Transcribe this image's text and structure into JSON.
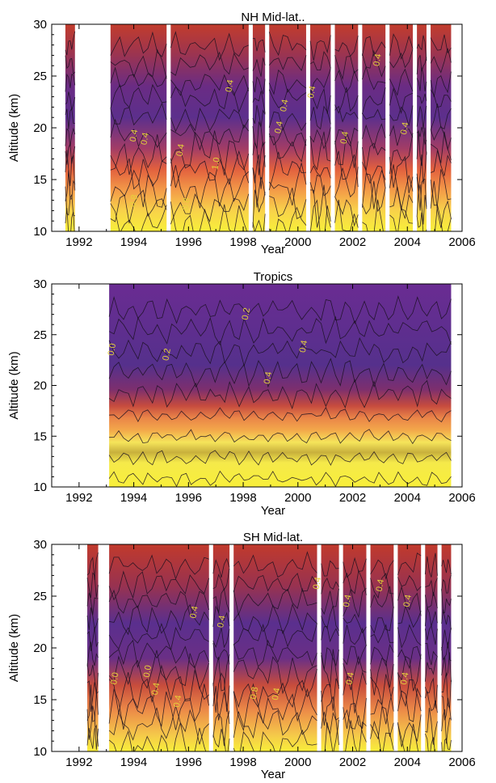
{
  "chart_data": [
    {
      "type": "heatmap",
      "title": "NH Mid-lat..",
      "xlabel": "Year",
      "ylabel": "Altitude (km)",
      "xlim": [
        1991,
        2006
      ],
      "ylim": [
        10,
        30
      ],
      "x_ticks": [
        "1992",
        "1994",
        "1996",
        "1998",
        "2000",
        "2002",
        "2004",
        "2006"
      ],
      "y_ticks": [
        "10",
        "15",
        "20",
        "25",
        "30"
      ],
      "data_spans": [
        [
          1991.5,
          1991.85
        ],
        [
          1993.15,
          1995.2
        ],
        [
          1995.35,
          1998.2
        ],
        [
          1998.35,
          1998.8
        ],
        [
          1998.95,
          2000.3
        ],
        [
          2000.45,
          2001.2
        ],
        [
          2001.35,
          2002.2
        ],
        [
          2002.35,
          2003.2
        ],
        [
          2003.35,
          2004.2
        ],
        [
          2004.35,
          2004.7
        ],
        [
          2004.85,
          2005.6
        ]
      ],
      "contour_labels": [
        {
          "text": "0.4",
          "x": 1994.1,
          "y": 19.2
        },
        {
          "text": "0.4",
          "x": 1994.5,
          "y": 18.9
        },
        {
          "text": "0.4",
          "x": 1995.8,
          "y": 17.8
        },
        {
          "text": "0.8",
          "x": 1994.1,
          "y": 12.9
        },
        {
          "text": "0.8",
          "x": 1996.0,
          "y": 12.6
        },
        {
          "text": "1.0",
          "x": 1997.1,
          "y": 16.5
        },
        {
          "text": "0.4",
          "x": 1997.6,
          "y": 24.0
        },
        {
          "text": "0.4",
          "x": 1999.4,
          "y": 20.0
        },
        {
          "text": "0.4",
          "x": 1999.6,
          "y": 22.1
        },
        {
          "text": "0.4",
          "x": 2000.6,
          "y": 23.4
        },
        {
          "text": "0.4",
          "x": 2001.8,
          "y": 19.0
        },
        {
          "text": "0.4",
          "x": 2003.0,
          "y": 26.5
        },
        {
          "text": "0.4",
          "x": 2004.0,
          "y": 19.9
        }
      ]
    },
    {
      "type": "heatmap",
      "title": "Tropics",
      "xlabel": "Year",
      "ylabel": "Altitude (km)",
      "xlim": [
        1991,
        2006
      ],
      "ylim": [
        10,
        30
      ],
      "x_ticks": [
        "1992",
        "1994",
        "1996",
        "1998",
        "2000",
        "2002",
        "2004",
        "2006"
      ],
      "y_ticks": [
        "10",
        "15",
        "20",
        "25",
        "30"
      ],
      "data_spans": [
        [
          1993.1,
          2005.6
        ]
      ],
      "contour_labels": [
        {
          "text": "0.0",
          "x": 1993.3,
          "y": 23.5
        },
        {
          "text": "0.2",
          "x": 1995.3,
          "y": 23.0
        },
        {
          "text": "0.2",
          "x": 1998.2,
          "y": 27.0
        },
        {
          "text": "0.4",
          "x": 2000.3,
          "y": 23.8
        },
        {
          "text": "0.4",
          "x": 1999.0,
          "y": 20.7
        }
      ]
    },
    {
      "type": "heatmap",
      "title": "SH Mid-lat.",
      "xlabel": "Year",
      "ylabel": "Altitude (km)",
      "xlim": [
        1991,
        2006
      ],
      "ylim": [
        10,
        30
      ],
      "x_ticks": [
        "1992",
        "1994",
        "1996",
        "1998",
        "2000",
        "2002",
        "2004",
        "2006"
      ],
      "y_ticks": [
        "10",
        "15",
        "20",
        "25",
        "30"
      ],
      "data_spans": [
        [
          1992.3,
          1992.7
        ],
        [
          1993.1,
          1996.75
        ],
        [
          1996.9,
          1997.5
        ],
        [
          1997.65,
          2000.7
        ],
        [
          2000.85,
          2001.5
        ],
        [
          2001.65,
          2002.5
        ],
        [
          2002.65,
          2003.5
        ],
        [
          2003.65,
          2004.5
        ],
        [
          2004.65,
          2005.1
        ],
        [
          2005.25,
          2005.6
        ]
      ],
      "contour_labels": [
        {
          "text": "0.0",
          "x": 1993.4,
          "y": 17.0
        },
        {
          "text": "0.0",
          "x": 1994.6,
          "y": 17.7
        },
        {
          "text": "0.4",
          "x": 1994.9,
          "y": 16.0
        },
        {
          "text": "0.4",
          "x": 1995.7,
          "y": 14.8
        },
        {
          "text": "0.4",
          "x": 1996.3,
          "y": 23.4
        },
        {
          "text": "0.4",
          "x": 1997.3,
          "y": 22.5
        },
        {
          "text": "0.8",
          "x": 1998.5,
          "y": 15.6
        },
        {
          "text": "0.4",
          "x": 1999.3,
          "y": 15.5
        },
        {
          "text": "0.4",
          "x": 2000.8,
          "y": 26.2
        },
        {
          "text": "0.4",
          "x": 2001.9,
          "y": 24.5
        },
        {
          "text": "0.4",
          "x": 2002.0,
          "y": 17.0
        },
        {
          "text": "0.4",
          "x": 2003.1,
          "y": 26.0
        },
        {
          "text": "0.4",
          "x": 2004.0,
          "y": 17.0
        },
        {
          "text": "0.4",
          "x": 2004.1,
          "y": 24.5
        }
      ]
    }
  ]
}
